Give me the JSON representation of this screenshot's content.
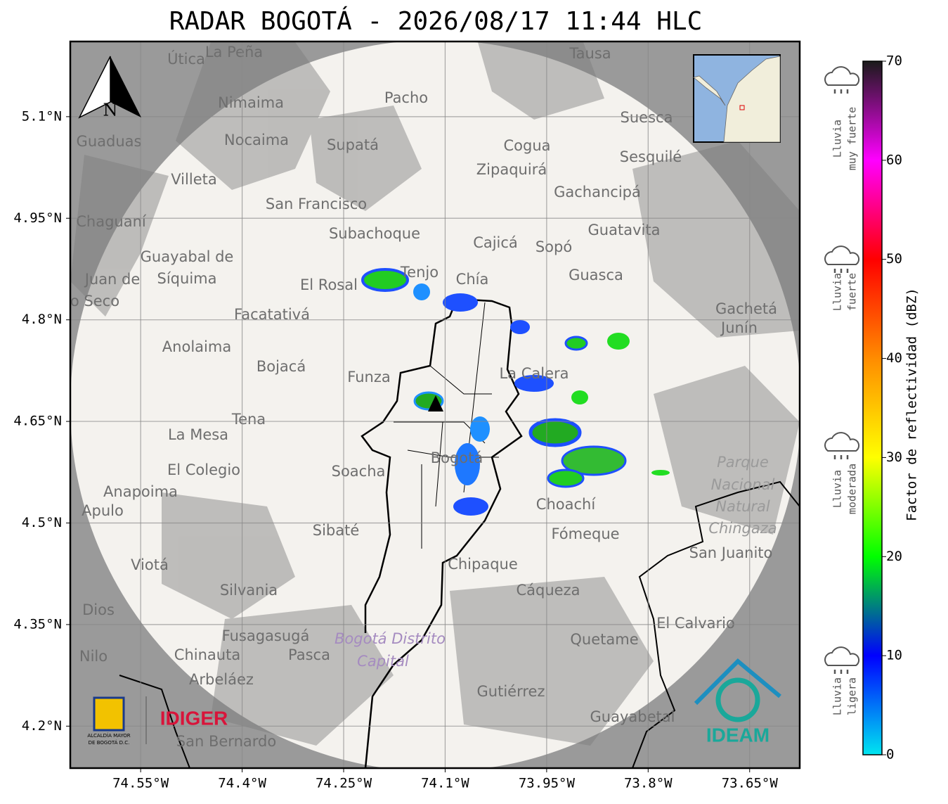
{
  "title": "RADAR BOGOTÁ - 2026/08/17 11:44 HLC",
  "map": {
    "lonlim": [
      -74.654,
      -73.576
    ],
    "latlim": [
      4.138,
      5.211
    ],
    "lon_ticks": [
      {
        "value": -74.55,
        "label": "74.55°W"
      },
      {
        "value": -74.4,
        "label": "74.4°W"
      },
      {
        "value": -74.25,
        "label": "74.25°W"
      },
      {
        "value": -74.1,
        "label": "74.1°W"
      },
      {
        "value": -73.95,
        "label": "73.95°W"
      },
      {
        "value": -73.8,
        "label": "73.8°W"
      },
      {
        "value": -73.65,
        "label": "73.65°W"
      }
    ],
    "lat_ticks": [
      {
        "value": 5.1,
        "label": "5.1°N"
      },
      {
        "value": 4.95,
        "label": "4.95°N"
      },
      {
        "value": 4.8,
        "label": "4.8°N"
      },
      {
        "value": 4.65,
        "label": "4.65°N"
      },
      {
        "value": 4.5,
        "label": "4.5°N"
      },
      {
        "value": 4.35,
        "label": "4.35°N"
      },
      {
        "value": 4.2,
        "label": "4.2°N"
      }
    ],
    "grid": true,
    "north": "N",
    "places": [
      "La Peña",
      "Útica",
      "Tausa",
      "Pacho",
      "Nimaima",
      "Guaduas",
      "Nocaima",
      "Supatá",
      "Cogua",
      "Suesca",
      "Sesquilé",
      "Zipaquirá",
      "Villeta",
      "Gachancipá",
      "San Francisco",
      "Chaguaní",
      "Subachoque",
      "Guatavita",
      "Cajicá",
      "Sopó",
      "Guayabal de",
      "Síquima",
      "Tenjo",
      "Guasca",
      "El Rosal",
      "Chía",
      "Juan de",
      "o Seco",
      "Facatativá",
      "Gachetá",
      "Junín",
      "Anolaima",
      "Bojacá",
      "Funza",
      "La Calera",
      "Tena",
      "La Mesa",
      "Parque",
      "Nacional",
      "Natural",
      "Chingaza",
      "El Colegio",
      "Soacha",
      "Bogotá",
      "Anapoima",
      "Apulo",
      "Choachí",
      "Sibaté",
      "Fómeque",
      "San Juanito",
      "Viotá",
      "Chipaque",
      "Silvania",
      "Cáqueza",
      "Dios",
      "El Calvario",
      "Fusagasugá",
      "Bogotá Distrito",
      "Capital",
      "Quetame",
      "Nilo",
      "Chinauta",
      "Pasca",
      "Arbeláez",
      "Gutiérrez",
      "Guayabetal",
      "San Bernardo"
    ]
  },
  "colorbar": {
    "label": "Factor de reflectividad (dBZ)",
    "lim": [
      0,
      70
    ],
    "ticks": [
      0,
      10,
      20,
      30,
      40,
      50,
      60,
      70
    ],
    "colors": [
      "#00e5f0",
      "#0000ff",
      "#00ff00",
      "#ffff00",
      "#ff8c00",
      "#ff0000",
      "#ff00ff",
      "#1a1a1a"
    ]
  },
  "rain_legend": [
    [
      "Lluvia",
      "muy fuerte"
    ],
    [
      "Lluvia",
      "fuerte"
    ],
    [
      "Lluvia",
      "moderada"
    ],
    [
      "Lluvia",
      "ligera"
    ]
  ],
  "logos": {
    "alcaldia": [
      "ALCALDÍA MAYOR",
      "DE BOGOTÁ D.C."
    ],
    "idiger": "IDIGER",
    "ideam": "IDEAM"
  }
}
